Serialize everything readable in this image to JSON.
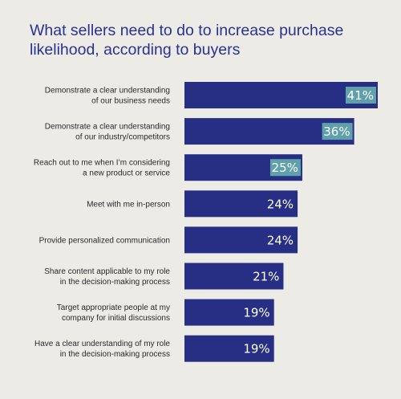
{
  "chart_data": {
    "type": "bar",
    "orientation": "horizontal",
    "title": "What sellers need to do to increase purchase likelihood, according to buyers",
    "categories": [
      [
        "Demonstrate a clear understanding",
        "of our business needs"
      ],
      [
        "Demonstrate a clear understanding",
        "of our industry/competitors"
      ],
      [
        "Reach out to me when I’m considering",
        "a new product or service"
      ],
      [
        "Meet with me in-person"
      ],
      [
        "Provide personalized communication"
      ],
      [
        "Share content applicable to my role",
        "in the decision-making process"
      ],
      [
        "Target appropriate people at my",
        "company for initial discussions"
      ],
      [
        "Have a clear understanding of my role",
        "in the decision-making process"
      ]
    ],
    "values": [
      41,
      36,
      25,
      24,
      24,
      21,
      19,
      19
    ],
    "value_labels": [
      "41%",
      "36%",
      "25%",
      "24%",
      "24%",
      "21%",
      "19%",
      "19%"
    ],
    "highlighted": [
      true,
      true,
      true,
      false,
      false,
      false,
      false,
      false
    ],
    "xlim": [
      0,
      41
    ],
    "grid": false,
    "colors": {
      "bar": "#272f85",
      "highlight": "#5fa0aa",
      "background": "#ecebe6",
      "title": "#2b3190"
    }
  }
}
